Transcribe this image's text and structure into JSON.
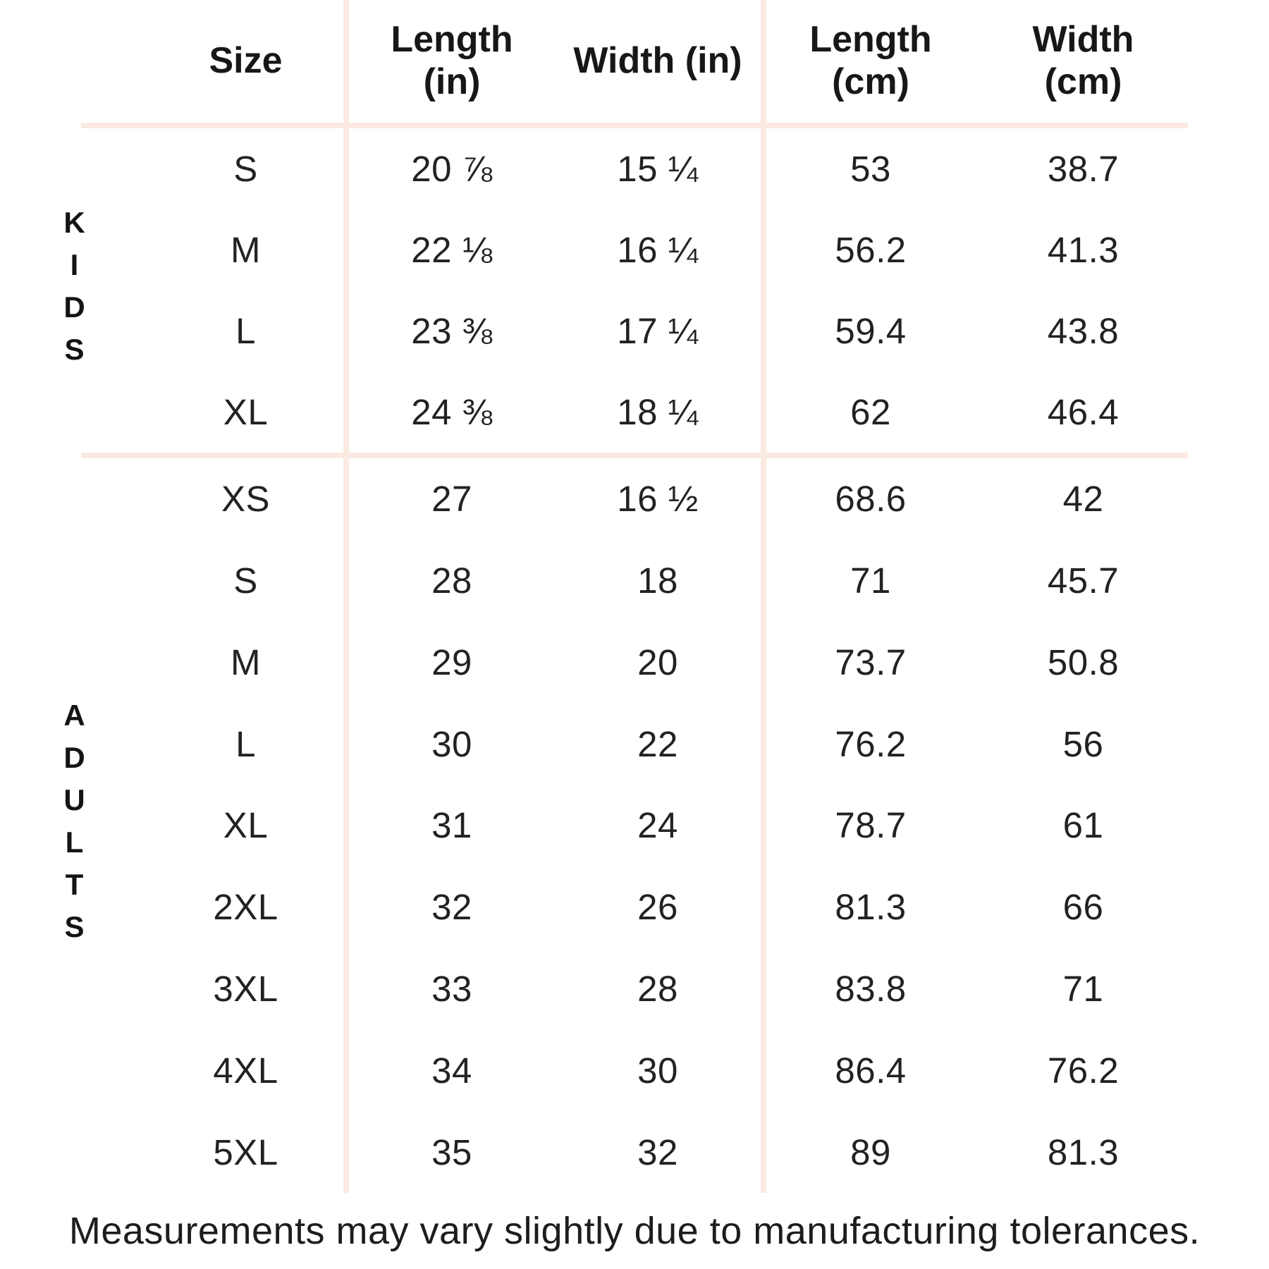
{
  "table": {
    "headers": {
      "size": "Size",
      "length_in": "Length\n(in)",
      "width_in": "Width (in)",
      "length_cm": "Length\n(cm)",
      "width_cm": "Width\n(cm)"
    },
    "sections": [
      {
        "group": "KIDS",
        "rows": [
          [
            "S",
            "20 ⅞",
            "15 ¼",
            "53",
            "38.7"
          ],
          [
            "M",
            "22 ⅛",
            "16 ¼",
            "56.2",
            "41.3"
          ],
          [
            "L",
            "23 ⅜",
            "17 ¼",
            "59.4",
            "43.8"
          ],
          [
            "XL",
            "24 ⅜",
            "18 ¼",
            "62",
            "46.4"
          ]
        ]
      },
      {
        "group": "ADULTS",
        "rows": [
          [
            "XS",
            "27",
            "16 ½",
            "68.6",
            "42"
          ],
          [
            "S",
            "28",
            "18",
            "71",
            "45.7"
          ],
          [
            "M",
            "29",
            "20",
            "73.7",
            "50.8"
          ],
          [
            "L",
            "30",
            "22",
            "76.2",
            "56"
          ],
          [
            "XL",
            "31",
            "24",
            "78.7",
            "61"
          ],
          [
            "2XL",
            "32",
            "26",
            "81.3",
            "66"
          ],
          [
            "3XL",
            "33",
            "28",
            "83.8",
            "71"
          ],
          [
            "4XL",
            "34",
            "30",
            "86.4",
            "76.2"
          ],
          [
            "5XL",
            "35",
            "32",
            "89",
            "81.3"
          ]
        ]
      }
    ]
  },
  "footer_note": "Measurements may vary slightly due to manufacturing tolerances.",
  "colors": {
    "line": "#fbeae1",
    "text": "#222222"
  }
}
